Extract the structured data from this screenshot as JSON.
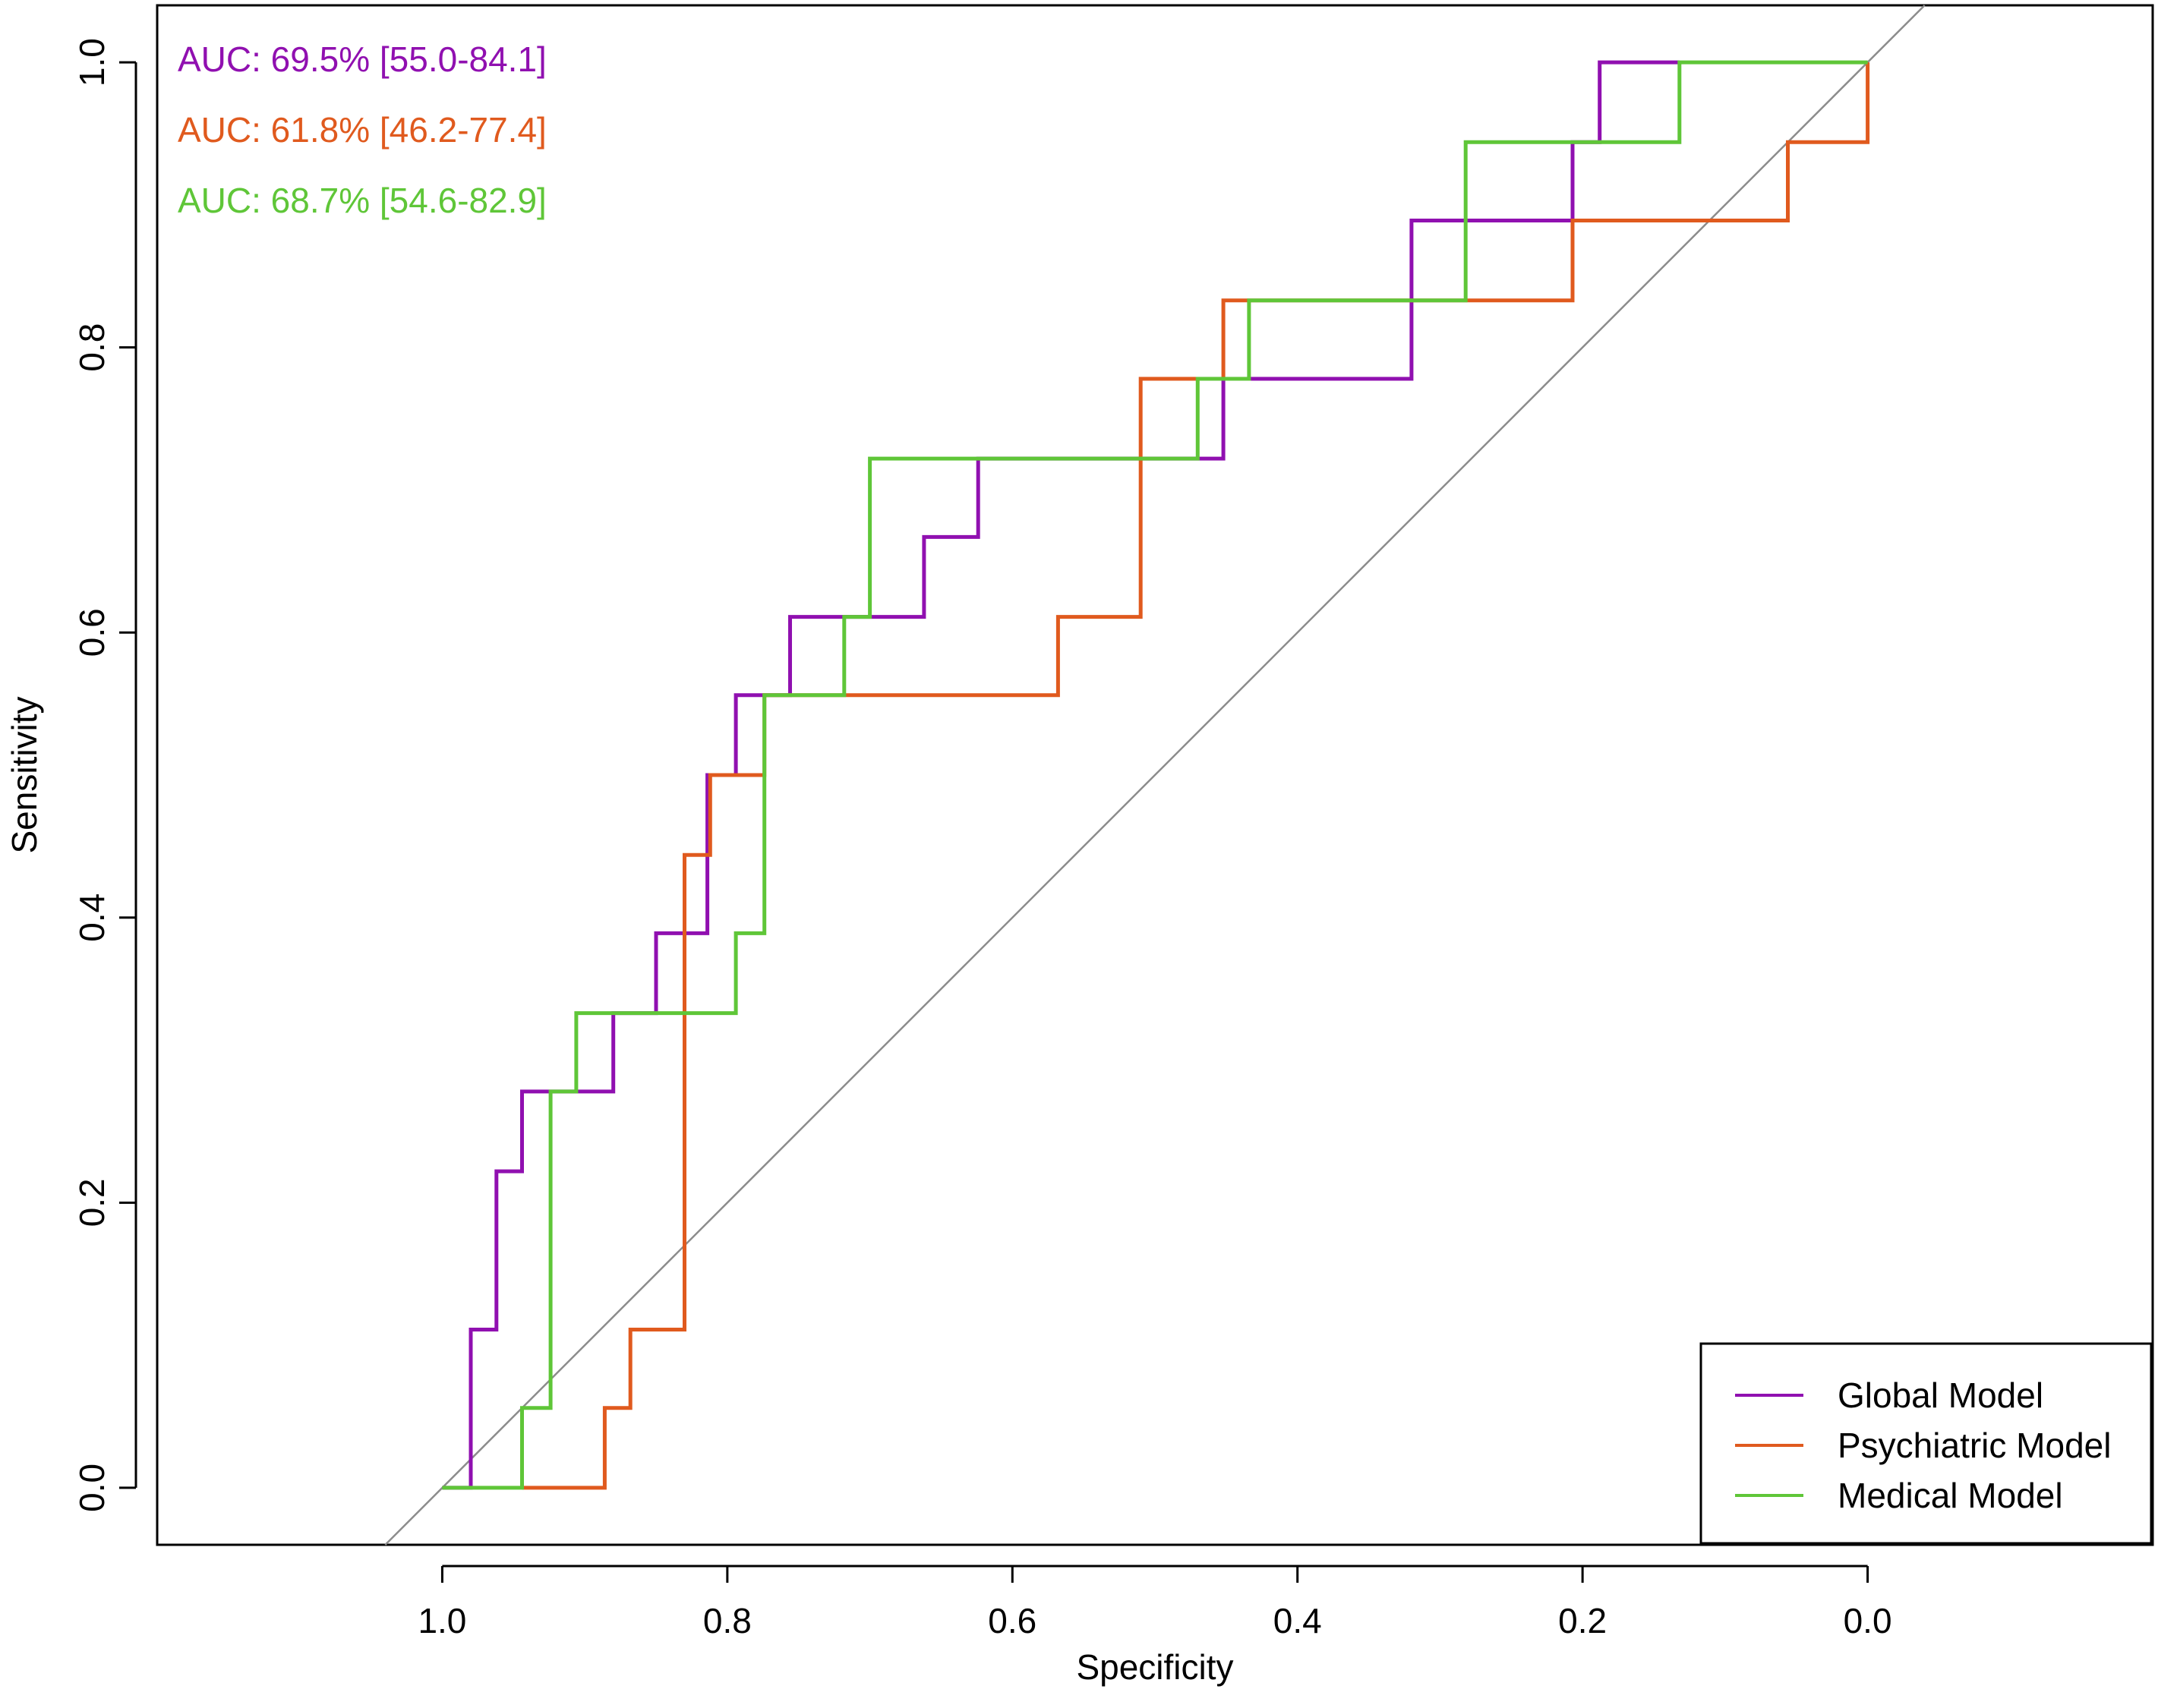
{
  "chart_data": {
    "type": "line",
    "title": "",
    "xlabel": "Specificity",
    "ylabel": "Sensitivity",
    "xlim": [
      1.2,
      -0.2
    ],
    "ylim": [
      -0.04,
      1.04
    ],
    "x_reversed": true,
    "x_ticks": [
      "1.0",
      "0.8",
      "0.6",
      "0.4",
      "0.2",
      "0.0"
    ],
    "x_tick_values": [
      1.0,
      0.8,
      0.6,
      0.4,
      0.2,
      0.0
    ],
    "y_ticks": [
      "0.0",
      "0.2",
      "0.4",
      "0.6",
      "0.8",
      "1.0"
    ],
    "y_tick_values": [
      0.0,
      0.2,
      0.4,
      0.6,
      0.8,
      1.0
    ],
    "reference_line": {
      "color": "#8c8c8c",
      "points": [
        [
          1.04,
          -0.04
        ],
        [
          -0.04,
          1.04
        ]
      ]
    },
    "annotations": [
      {
        "text": "AUC: 69.5% [55.0-84.1]",
        "color": "#9010b0"
      },
      {
        "text": "AUC: 61.8% [46.2-77.4]",
        "color": "#e05a1e"
      },
      {
        "text": "AUC: 68.7% [54.6-82.9]",
        "color": "#5fc638"
      }
    ],
    "legend_position": "bottom-right",
    "series": [
      {
        "name": "Global Model",
        "color": "#9010b0",
        "specificity": [
          1.0,
          0.98,
          0.98,
          0.962,
          0.962,
          0.944,
          0.944,
          0.88,
          0.88,
          0.85,
          0.85,
          0.814,
          0.814,
          0.794,
          0.794,
          0.756,
          0.756,
          0.662,
          0.662,
          0.624,
          0.624,
          0.452,
          0.452,
          0.32,
          0.32,
          0.207,
          0.207,
          0.188,
          0.188,
          0.132
        ],
        "sensitivity": [
          0.0,
          0.0,
          0.111,
          0.111,
          0.222,
          0.222,
          0.278,
          0.278,
          0.333,
          0.333,
          0.389,
          0.389,
          0.5,
          0.5,
          0.556,
          0.556,
          0.611,
          0.611,
          0.667,
          0.667,
          0.722,
          0.722,
          0.778,
          0.778,
          0.889,
          0.889,
          0.944,
          0.944,
          1.0,
          1.0
        ]
      },
      {
        "name": "Psychiatric Model",
        "color": "#e05a1e",
        "specificity": [
          0.944,
          0.886,
          0.886,
          0.868,
          0.868,
          0.83,
          0.83,
          0.812,
          0.812,
          0.774,
          0.774,
          0.568,
          0.568,
          0.51,
          0.51,
          0.452,
          0.452,
          0.207,
          0.207,
          0.056,
          0.056,
          0.0,
          0.0
        ],
        "sensitivity": [
          0.0,
          0.0,
          0.056,
          0.056,
          0.111,
          0.111,
          0.444,
          0.444,
          0.5,
          0.5,
          0.556,
          0.556,
          0.611,
          0.611,
          0.778,
          0.778,
          0.833,
          0.833,
          0.889,
          0.889,
          0.944,
          0.944,
          1.0
        ]
      },
      {
        "name": "Medical Model",
        "color": "#5fc638",
        "specificity": [
          1.0,
          0.944,
          0.944,
          0.924,
          0.924,
          0.906,
          0.906,
          0.794,
          0.794,
          0.774,
          0.774,
          0.718,
          0.718,
          0.7,
          0.7,
          0.47,
          0.47,
          0.434,
          0.434,
          0.282,
          0.282,
          0.132,
          0.132,
          0.0
        ],
        "sensitivity": [
          0.0,
          0.0,
          0.056,
          0.056,
          0.278,
          0.278,
          0.333,
          0.333,
          0.389,
          0.389,
          0.556,
          0.556,
          0.611,
          0.611,
          0.722,
          0.722,
          0.778,
          0.778,
          0.833,
          0.833,
          0.944,
          0.944,
          1.0,
          1.0
        ]
      }
    ]
  }
}
